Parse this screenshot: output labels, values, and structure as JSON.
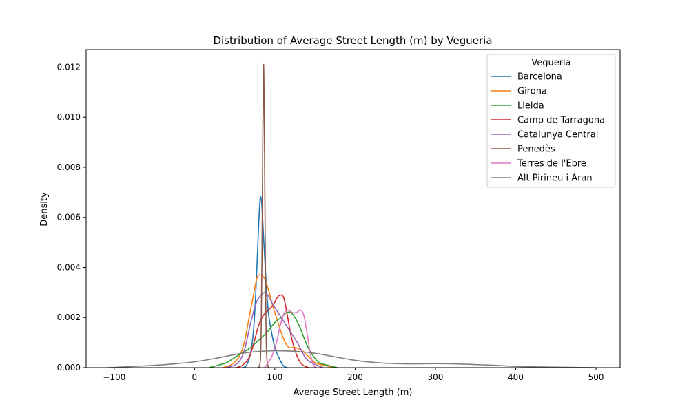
{
  "chart_data": {
    "type": "line",
    "title": "Distribution of Average Street Length (m) by Vegueria",
    "xlabel": "Average Street Length (m)",
    "ylabel": "Density",
    "xlim": [
      -135,
      530
    ],
    "ylim": [
      0,
      0.0127
    ],
    "x_ticks": [
      -100,
      0,
      100,
      200,
      300,
      400,
      500
    ],
    "x_tick_labels": [
      "−100",
      "0",
      "100",
      "200",
      "300",
      "400",
      "500"
    ],
    "y_ticks": [
      0,
      0.002,
      0.004,
      0.006,
      0.008,
      0.01,
      0.012
    ],
    "y_tick_labels": [
      "0.000",
      "0.002",
      "0.004",
      "0.006",
      "0.008",
      "0.010",
      "0.012"
    ],
    "grid": false,
    "legend": {
      "title": "Vegueria",
      "placement": "top-right"
    },
    "series": [
      {
        "name": "Barcelona",
        "color": "#1f77b4",
        "points": [
          [
            60,
            0
          ],
          [
            65,
            0.0001
          ],
          [
            70,
            0.0006
          ],
          [
            74,
            0.0017
          ],
          [
            77,
            0.0035
          ],
          [
            80,
            0.0058
          ],
          [
            82,
            0.0068
          ],
          [
            84,
            0.0064
          ],
          [
            86,
            0.0052
          ],
          [
            89,
            0.0035
          ],
          [
            92,
            0.0022
          ],
          [
            96,
            0.0014
          ],
          [
            100,
            0.0008
          ],
          [
            105,
            0.0004
          ],
          [
            110,
            0.0001
          ],
          [
            115,
            0
          ]
        ]
      },
      {
        "name": "Girona",
        "color": "#ff7f0e",
        "points": [
          [
            35,
            0
          ],
          [
            45,
            0.0001
          ],
          [
            55,
            0.0004
          ],
          [
            62,
            0.001
          ],
          [
            68,
            0.002
          ],
          [
            74,
            0.003
          ],
          [
            78,
            0.0036
          ],
          [
            83,
            0.0037
          ],
          [
            88,
            0.0035
          ],
          [
            93,
            0.003
          ],
          [
            98,
            0.0024
          ],
          [
            103,
            0.0019
          ],
          [
            108,
            0.0014
          ],
          [
            113,
            0.001
          ],
          [
            118,
            0.0008
          ],
          [
            125,
            0.0008
          ],
          [
            133,
            0.0007
          ],
          [
            140,
            0.0005
          ],
          [
            150,
            0.0002
          ],
          [
            160,
            0.0001
          ],
          [
            175,
            0
          ]
        ]
      },
      {
        "name": "Lleida",
        "color": "#2ca02c",
        "points": [
          [
            18,
            0
          ],
          [
            30,
            0.0001
          ],
          [
            40,
            0.0002
          ],
          [
            50,
            0.0004
          ],
          [
            60,
            0.0006
          ],
          [
            70,
            0.0008
          ],
          [
            80,
            0.0011
          ],
          [
            90,
            0.0014
          ],
          [
            100,
            0.0018
          ],
          [
            108,
            0.002
          ],
          [
            115,
            0.0022
          ],
          [
            120,
            0.0022
          ],
          [
            125,
            0.002
          ],
          [
            130,
            0.0017
          ],
          [
            135,
            0.0013
          ],
          [
            140,
            0.0009
          ],
          [
            147,
            0.0005
          ],
          [
            155,
            0.0002
          ],
          [
            165,
            0.0001
          ],
          [
            178,
            0
          ]
        ]
      },
      {
        "name": "Camp de Tarragona",
        "color": "#d62728",
        "points": [
          [
            52,
            0
          ],
          [
            60,
            0.0001
          ],
          [
            68,
            0.0004
          ],
          [
            74,
            0.001
          ],
          [
            80,
            0.0017
          ],
          [
            86,
            0.0021
          ],
          [
            92,
            0.0023
          ],
          [
            98,
            0.0025
          ],
          [
            103,
            0.0028
          ],
          [
            107,
            0.0029
          ],
          [
            111,
            0.0028
          ],
          [
            115,
            0.0022
          ],
          [
            120,
            0.0013
          ],
          [
            125,
            0.0007
          ],
          [
            130,
            0.0003
          ],
          [
            135,
            0.0001
          ],
          [
            142,
            0
          ]
        ]
      },
      {
        "name": "Catalunya Central",
        "color": "#9467bd",
        "points": [
          [
            40,
            0
          ],
          [
            50,
            0.0001
          ],
          [
            57,
            0.0003
          ],
          [
            63,
            0.0008
          ],
          [
            70,
            0.0018
          ],
          [
            77,
            0.0026
          ],
          [
            83,
            0.0029
          ],
          [
            88,
            0.003
          ],
          [
            93,
            0.0028
          ],
          [
            98,
            0.0025
          ],
          [
            104,
            0.0022
          ],
          [
            110,
            0.0019
          ],
          [
            116,
            0.0016
          ],
          [
            122,
            0.0013
          ],
          [
            128,
            0.001
          ],
          [
            133,
            0.0007
          ],
          [
            138,
            0.0004
          ],
          [
            145,
            0.0002
          ],
          [
            152,
            0.0001
          ],
          [
            160,
            0
          ]
        ]
      },
      {
        "name": "Penedès",
        "color": "#8c564b",
        "points": [
          [
            80,
            0
          ],
          [
            82,
            0.0003
          ],
          [
            83,
            0.0015
          ],
          [
            84,
            0.0045
          ],
          [
            85,
            0.009
          ],
          [
            86,
            0.0121
          ],
          [
            87,
            0.0095
          ],
          [
            88,
            0.005
          ],
          [
            89,
            0.0018
          ],
          [
            90,
            0.0004
          ],
          [
            92,
            0
          ]
        ]
      },
      {
        "name": "Terres de l'Ebre",
        "color": "#e377c2",
        "points": [
          [
            87,
            0
          ],
          [
            92,
            0.0002
          ],
          [
            97,
            0.0005
          ],
          [
            102,
            0.001
          ],
          [
            107,
            0.0017
          ],
          [
            112,
            0.0022
          ],
          [
            117,
            0.0023
          ],
          [
            122,
            0.0022
          ],
          [
            127,
            0.0022
          ],
          [
            132,
            0.0023
          ],
          [
            136,
            0.0021
          ],
          [
            140,
            0.0014
          ],
          [
            144,
            0.0006
          ],
          [
            148,
            0.0001
          ],
          [
            152,
            0
          ]
        ]
      },
      {
        "name": "Alt Pirineu i Aran",
        "color": "#7f7f7f",
        "points": [
          [
            -108,
            0
          ],
          [
            -100,
            1e-05
          ],
          [
            -75,
            5e-05
          ],
          [
            -50,
            9e-05
          ],
          [
            -25,
            0.00015
          ],
          [
            0,
            0.00023
          ],
          [
            25,
            0.00036
          ],
          [
            50,
            0.00052
          ],
          [
            75,
            0.00063
          ],
          [
            100,
            0.00067
          ],
          [
            125,
            0.00065
          ],
          [
            150,
            0.00057
          ],
          [
            175,
            0.00043
          ],
          [
            200,
            0.00029
          ],
          [
            225,
            0.0002
          ],
          [
            250,
            0.00016
          ],
          [
            275,
            0.00015
          ],
          [
            300,
            0.00016
          ],
          [
            325,
            0.00015
          ],
          [
            350,
            0.00012
          ],
          [
            375,
            9e-05
          ],
          [
            400,
            5e-05
          ],
          [
            425,
            3e-05
          ],
          [
            450,
            2e-05
          ],
          [
            475,
            1e-05
          ],
          [
            500,
            0
          ]
        ]
      }
    ]
  }
}
